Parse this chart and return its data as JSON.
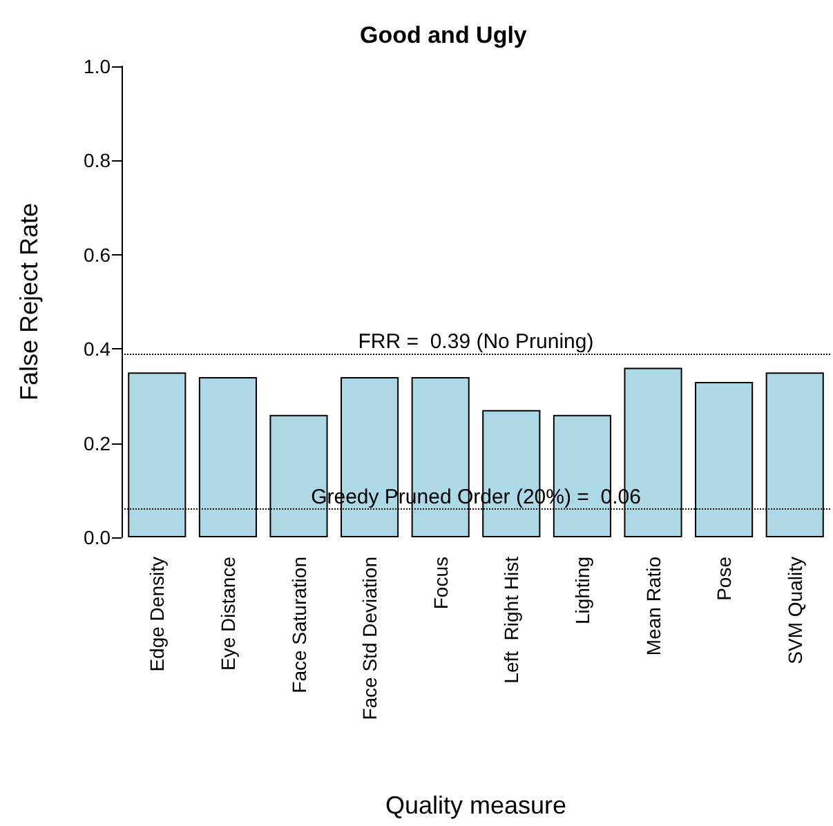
{
  "chart_data": {
    "type": "bar",
    "title": "Good and Ugly",
    "xlabel": "Quality measure",
    "ylabel": "False Reject Rate",
    "categories": [
      "Edge Density",
      "Eye Distance",
      "Face Saturation",
      "Face Std Deviation",
      "Focus",
      "Left  Right Hist",
      "Lighting",
      "Mean Ratio",
      "Pose",
      "SVM Quality"
    ],
    "values": [
      0.35,
      0.34,
      0.26,
      0.34,
      0.34,
      0.27,
      0.26,
      0.36,
      0.33,
      0.35
    ],
    "color": "#add8e6",
    "ylim": [
      0,
      1
    ],
    "yticks": [
      "0.0",
      "0.2",
      "0.4",
      "0.6",
      "0.8",
      "1.0"
    ],
    "ref_lines": [
      {
        "axis": "y",
        "value": 0.39,
        "label": "FRR =  0.39 (No Pruning)",
        "line_style": "dotted",
        "color": "#000000"
      },
      {
        "axis": "y",
        "value": 0.06,
        "label": "Greedy Pruned Order (20%) =  0.06",
        "line_style": "dotted",
        "color": "#000000"
      }
    ],
    "grid": false
  }
}
